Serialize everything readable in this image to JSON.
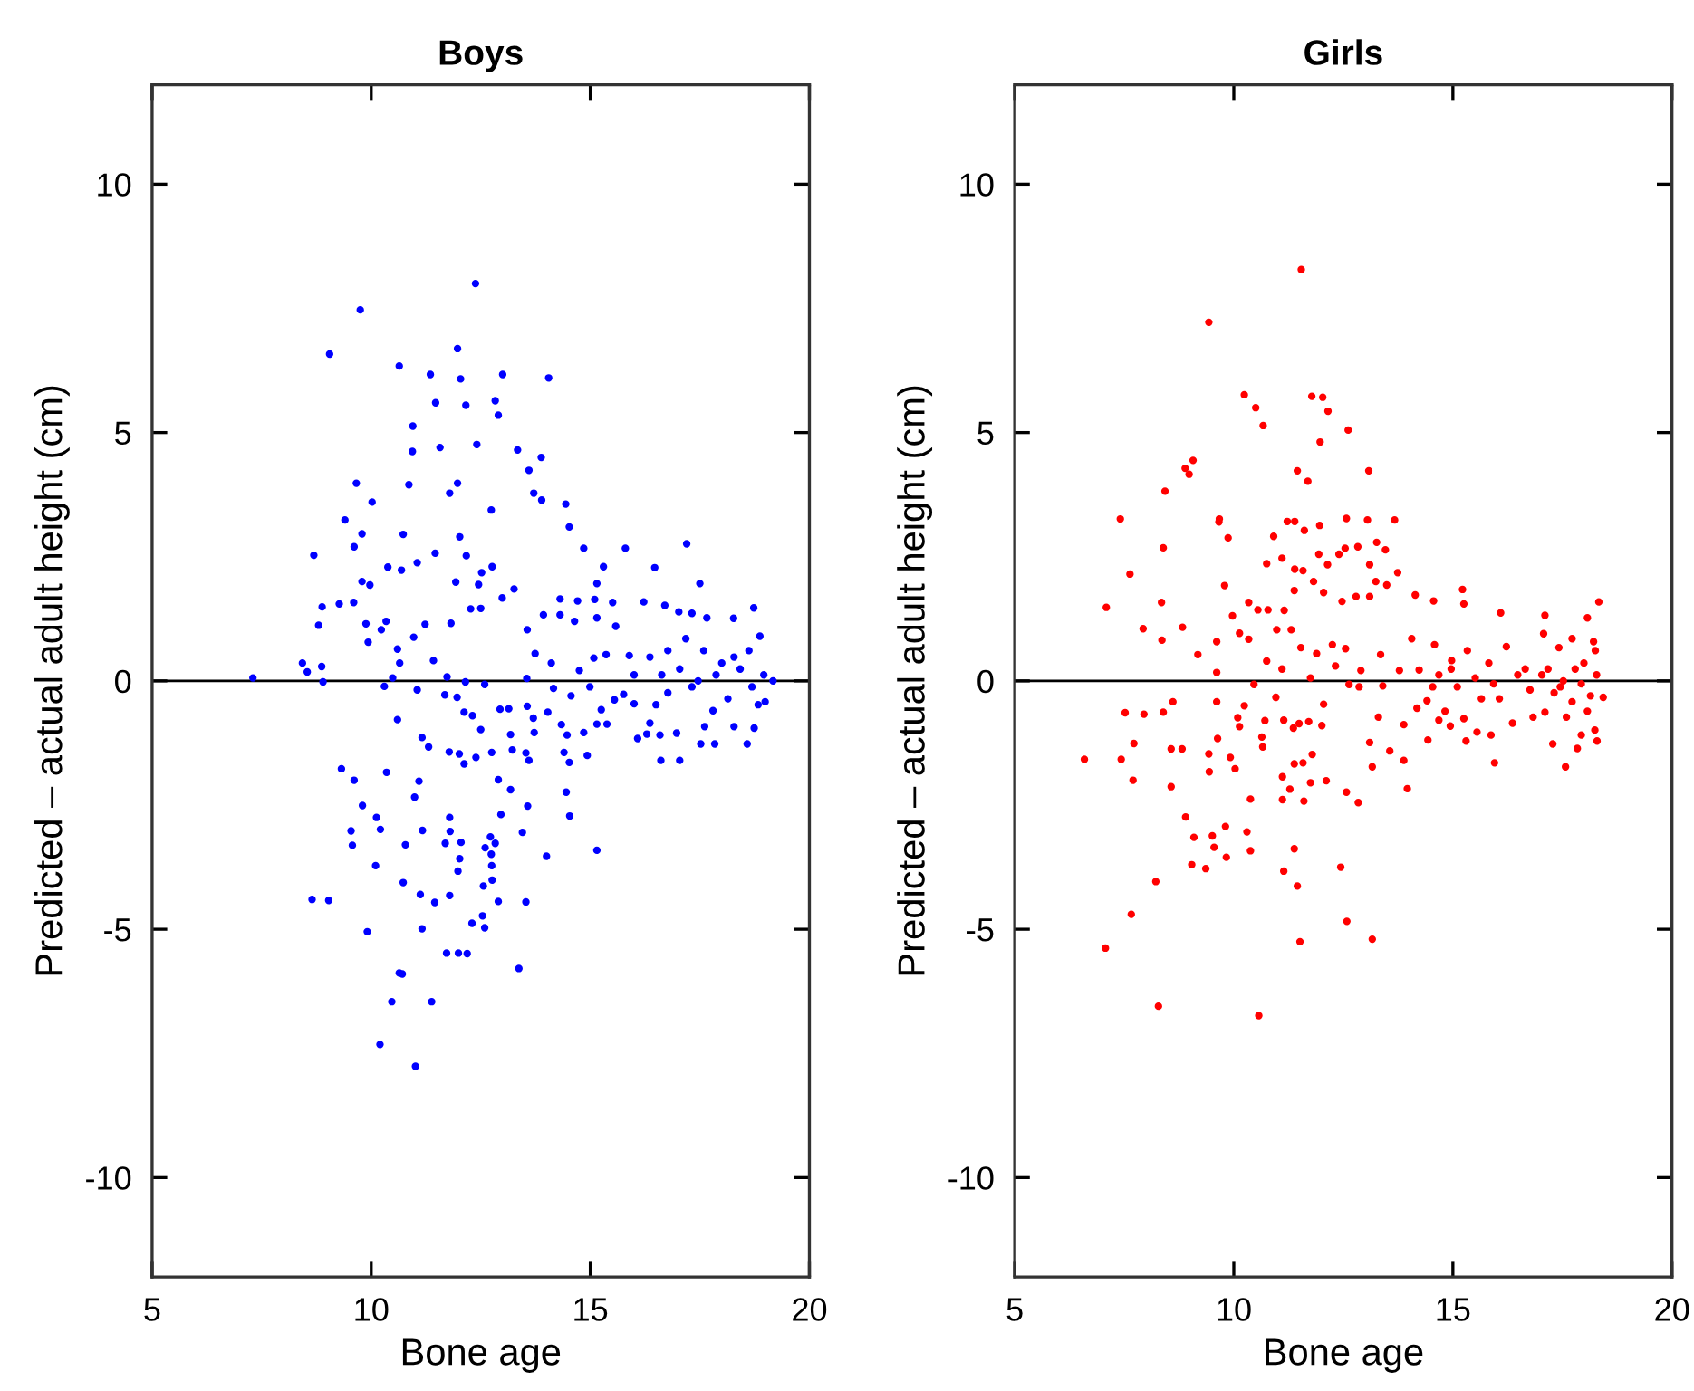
{
  "chart_data": [
    {
      "type": "scatter",
      "title": "Boys",
      "xlabel": "Bone age",
      "ylabel": "Predicted – actual adult height (cm)",
      "color": "#0000ff",
      "marker": "circle",
      "xlim": [
        5,
        20
      ],
      "ylim": [
        -12,
        12
      ],
      "xticks": [
        5,
        10,
        15,
        20
      ],
      "yticks": [
        -10,
        -5,
        0,
        5,
        10
      ],
      "ref_lines": [
        {
          "axis": "y",
          "value": 0,
          "label": null,
          "color": "#000000"
        }
      ],
      "x": [
        7.3,
        12.38,
        9.75,
        9.05,
        10.64,
        11.35,
        11.97,
        12.04,
        13.0,
        14.05,
        11.47,
        12.16,
        12.83,
        12.9,
        10.95,
        10.94,
        11.57,
        12.41,
        13.34,
        13.88,
        13.6,
        9.66,
        10.86,
        11.97,
        10.02,
        11.79,
        13.71,
        13.89,
        14.44,
        12.74,
        9.4,
        14.52,
        9.79,
        10.73,
        12.02,
        9.61,
        8.69,
        12.17,
        11.46,
        11.05,
        10.38,
        10.69,
        12.52,
        12.76,
        11.93,
        12.45,
        13.26,
        9.79,
        9.97,
        14.85,
        15.8,
        15.3,
        17.2,
        16.47,
        15.15,
        17.5,
        8.88,
        9.27,
        9.6,
        8.8,
        9.88,
        10.34,
        10.23,
        11.23,
        11.82,
        9.93,
        10.97,
        10.6,
        12.27,
        12.5,
        12.99,
        13.93,
        13.56,
        14.31,
        14.31,
        14.71,
        15.1,
        15.51,
        15.58,
        15.15,
        14.64,
        13.74,
        14.11,
        14.75,
        15.08,
        15.36,
        15.89,
        16.22,
        16.7,
        17.02,
        17.32,
        17.66,
        18.27,
        18.73,
        18.87,
        11.42,
        11.73,
        12.15,
        12.59,
        13.55,
        11.05,
        10.3,
        10.49,
        8.43,
        8.9,
        8.54,
        8.87,
        10.65,
        11.68,
        11.96,
        10.6,
        12.12,
        12.31,
        12.5,
        12.94,
        13.14,
        13.56,
        13.7,
        14.03,
        14.16,
        14.56,
        14.99,
        15.25,
        15.55,
        15.76,
        11.16,
        11.31,
        11.78,
        12.01,
        12.12,
        12.39,
        12.75,
        13.18,
        13.22,
        13.53,
        13.6,
        13.72,
        14.34,
        14.47,
        14.4,
        14.52,
        14.85,
        14.93,
        15.15,
        15.38,
        16.08,
        16.29,
        16.59,
        16.61,
        16.97,
        17.04,
        17.52,
        17.84,
        17.61,
        18.28,
        18.58,
        18.74,
        9.32,
        9.61,
        9.8,
        10.35,
        10.99,
        11.09,
        10.12,
        9.54,
        9.57,
        10.21,
        11.17,
        10.78,
        10.1,
        11.79,
        11.8,
        11.69,
        12.05,
        12.02,
        11.98,
        12.6,
        12.72,
        12.83,
        12.74,
        12.75,
        12.76,
        12.56,
        12.9,
        13.18,
        12.96,
        13.57,
        13.45,
        14.0,
        14.45,
        14.53,
        15.15,
        8.65,
        9.03,
        9.91,
        10.73,
        11.12,
        11.45,
        11.79,
        11.16,
        12.3,
        12.54,
        12.59,
        12.9,
        13.53,
        11.72,
        11.99,
        12.19,
        13.37,
        10.64,
        10.71,
        10.47,
        11.38,
        10.2,
        11.01,
        16.36,
        16.63,
        16.77,
        17.04,
        17.32,
        17.59,
        17.87,
        18.14,
        18.42,
        18.69,
        18.96,
        19.17,
        18.83,
        18.28,
        17.18,
        16.5,
        17.8,
        18.62,
        16.77,
        17.46,
        18.0,
        16.0,
        16.0,
        16.36,
        18.99
      ],
      "values": [
        0.06,
        8.0,
        7.47,
        6.58,
        6.34,
        6.17,
        6.69,
        6.08,
        6.17,
        6.1,
        5.6,
        5.55,
        5.64,
        5.35,
        5.13,
        4.62,
        4.7,
        4.76,
        4.65,
        4.5,
        4.24,
        3.98,
        3.95,
        3.98,
        3.6,
        3.78,
        3.78,
        3.64,
        3.56,
        3.44,
        3.24,
        3.1,
        2.96,
        2.95,
        2.9,
        2.7,
        2.53,
        2.52,
        2.57,
        2.38,
        2.29,
        2.23,
        2.18,
        2.3,
        1.99,
        1.94,
        1.85,
        2.0,
        1.93,
        2.67,
        2.67,
        2.3,
        2.76,
        2.28,
        1.96,
        1.96,
        1.49,
        1.55,
        1.58,
        1.12,
        1.15,
        1.2,
        1.03,
        1.14,
        1.16,
        0.78,
        0.88,
        0.64,
        1.45,
        1.46,
        1.67,
        1.33,
        1.03,
        1.33,
        1.65,
        1.61,
        1.64,
        1.58,
        1.1,
        1.27,
        1.2,
        0.55,
        0.36,
        0.21,
        0.46,
        0.53,
        0.51,
        1.59,
        1.52,
        1.39,
        1.36,
        1.27,
        1.26,
        1.47,
        0.9,
        0.41,
        0.08,
        -0.02,
        -0.07,
        0.05,
        -0.18,
        -0.11,
        0.06,
        0.36,
        -0.02,
        0.18,
        0.29,
        0.36,
        -0.28,
        -0.33,
        -0.78,
        -0.63,
        -0.7,
        -0.98,
        -0.57,
        -0.56,
        -0.51,
        -0.75,
        -0.63,
        -0.15,
        -0.3,
        -0.12,
        -0.58,
        -0.38,
        -0.27,
        -1.14,
        -1.33,
        -1.43,
        -1.47,
        -1.67,
        -1.54,
        -1.44,
        -1.08,
        -1.39,
        -1.45,
        -1.6,
        -1.04,
        -0.88,
        -1.09,
        -1.44,
        -1.64,
        -1.04,
        -1.5,
        -0.87,
        -0.87,
        -1.16,
        -1.07,
        -1.09,
        -1.6,
        -1.05,
        -1.6,
        -1.27,
        -1.27,
        -0.92,
        -0.92,
        -1.27,
        -0.95,
        -1.77,
        -2.0,
        -2.51,
        -1.84,
        -2.34,
        -2.02,
        -2.75,
        -3.02,
        -3.31,
        -2.99,
        -3.01,
        -3.3,
        -3.72,
        -2.75,
        -3.03,
        -3.27,
        -3.25,
        -3.58,
        -3.83,
        -3.36,
        -3.14,
        -3.27,
        -3.49,
        -3.72,
        -4.01,
        -4.13,
        -1.99,
        -2.19,
        -2.69,
        -2.52,
        -3.05,
        -3.53,
        -2.24,
        -2.72,
        -3.41,
        -4.4,
        -4.42,
        -5.05,
        -4.06,
        -4.3,
        -4.46,
        -4.32,
        -4.99,
        -4.88,
        -4.73,
        -4.97,
        -4.44,
        -4.45,
        -5.48,
        -5.48,
        -5.49,
        -5.79,
        -5.88,
        -5.9,
        -6.46,
        -6.46,
        -7.32,
        -7.76,
        0.48,
        0.12,
        -0.24,
        0.24,
        -0.12,
        0.61,
        0.12,
        -0.36,
        0.24,
        -0.12,
        0.12,
        0.0,
        -0.48,
        0.48,
        0.85,
        -0.48,
        -0.6,
        0.61,
        0.61,
        0.0,
        0.36,
        0.12,
        -0.46,
        -0.85,
        -0.42
      ]
    },
    {
      "type": "scatter",
      "title": "Girls",
      "xlabel": "Bone age",
      "ylabel": "Predicted – actual adult height (cm)",
      "color": "#ff0000",
      "marker": "circle",
      "xlim": [
        5,
        20
      ],
      "ylim": [
        -12,
        12
      ],
      "xticks": [
        5,
        10,
        15,
        20
      ],
      "yticks": [
        -10,
        -5,
        0,
        5,
        10
      ],
      "ref_lines": [
        {
          "axis": "y",
          "value": 0,
          "label": null,
          "color": "#000000"
        }
      ],
      "x": [
        11.54,
        9.43,
        10.24,
        10.5,
        10.67,
        11.78,
        12.03,
        12.15,
        12.61,
        11.97,
        9.07,
        8.89,
        8.98,
        11.45,
        11.69,
        13.08,
        8.43,
        7.41,
        9.67,
        9.66,
        11.22,
        11.39,
        11.61,
        11.96,
        12.57,
        13.05,
        13.67,
        8.39,
        9.87,
        10.91,
        11.1,
        10.75,
        11.39,
        11.58,
        11.94,
        12.14,
        12.4,
        12.54,
        12.83,
        13.1,
        13.26,
        13.46,
        7.63,
        7.09,
        8.35,
        7.93,
        8.36,
        8.83,
        9.79,
        9.97,
        10.34,
        10.55,
        10.78,
        10.13,
        10.34,
        10.98,
        11.15,
        11.31,
        11.38,
        11.82,
        12.05,
        12.47,
        12.79,
        13.1,
        13.24,
        13.49,
        13.74,
        14.14,
        15.22,
        14.56,
        15.25,
        16.09,
        17.1,
        18.33,
        18.07,
        9.18,
        9.61,
        9.61,
        10.46,
        10.75,
        11.1,
        11.53,
        11.75,
        11.89,
        12.25,
        12.32,
        12.55,
        12.63,
        12.9,
        13.35,
        13.4,
        13.78,
        14.06,
        14.23,
        14.58,
        14.97,
        15.33,
        15.82,
        16.22,
        16.65,
        17.07,
        17.42,
        17.72,
        17.99,
        18.25,
        7.52,
        7.95,
        8.39,
        8.61,
        9.61,
        10.24,
        10.09,
        10.13,
        10.96,
        10.71,
        10.64,
        10.66,
        11.14,
        11.36,
        11.49,
        11.71,
        12.01,
        12.05,
        12.86,
        13.3,
        13.1,
        13.16,
        13.56,
        13.88,
        13.88,
        14.18,
        14.41,
        14.43,
        14.68,
        14.94,
        15.25,
        15.3,
        15.55,
        15.95,
        15.87,
        16.36,
        16.83,
        17.1,
        17.28,
        17.57,
        17.84,
        17.93,
        18.24,
        18.29,
        18.43,
        6.59,
        7.43,
        7.72,
        7.7,
        8.57,
        8.82,
        8.57,
        9.43,
        9.44,
        9.63,
        9.92,
        10.03,
        10.38,
        11.11,
        11.11,
        11.28,
        11.38,
        11.58,
        11.6,
        11.75,
        11.79,
        12.11,
        12.57,
        12.84,
        13.96,
        8.9,
        9.09,
        9.51,
        9.55,
        9.81,
        9.83,
        10.3,
        10.38,
        9.04,
        9.36,
        11.38,
        11.14,
        11.45,
        12.44,
        8.22,
        7.66,
        7.07,
        11.51,
        12.58,
        13.16,
        8.28,
        10.57,
        14.68,
        15.1,
        15.51,
        15.93,
        16.06,
        16.48,
        16.76,
        17.03,
        17.31,
        17.52,
        17.72,
        17.93,
        18.14,
        18.28,
        17.59,
        18.07,
        14.82,
        15.65,
        14.54,
        14.96,
        17.17,
        17.79,
        18.21,
        17.45
      ],
      "values": [
        8.28,
        7.22,
        5.76,
        5.5,
        5.14,
        5.73,
        5.71,
        5.43,
        5.05,
        4.81,
        4.44,
        4.28,
        4.16,
        4.23,
        4.02,
        4.23,
        3.82,
        3.26,
        3.26,
        3.2,
        3.21,
        3.21,
        3.03,
        3.13,
        3.27,
        3.24,
        3.24,
        2.68,
        2.88,
        2.91,
        2.47,
        2.36,
        2.25,
        2.22,
        2.55,
        2.34,
        2.55,
        2.67,
        2.7,
        2.34,
        2.79,
        2.64,
        2.15,
        1.48,
        1.58,
        1.05,
        0.82,
        1.08,
        1.92,
        1.31,
        1.58,
        1.43,
        1.43,
        0.96,
        0.84,
        1.03,
        1.42,
        1.03,
        1.82,
        2.0,
        1.78,
        1.6,
        1.7,
        1.7,
        2.0,
        1.93,
        2.18,
        1.73,
        1.84,
        1.61,
        1.55,
        1.37,
        1.32,
        1.59,
        1.27,
        0.53,
        0.79,
        0.17,
        -0.07,
        0.4,
        0.24,
        0.67,
        0.06,
        0.55,
        0.73,
        0.3,
        0.65,
        -0.07,
        0.21,
        0.53,
        -0.1,
        0.21,
        0.85,
        0.22,
        0.73,
        0.41,
        0.61,
        0.36,
        0.69,
        0.24,
        0.95,
        0.67,
        0.85,
        0.36,
        0.61,
        -0.64,
        -0.67,
        -0.63,
        -0.42,
        -0.42,
        -0.5,
        -0.74,
        -0.92,
        -0.33,
        -0.8,
        -1.13,
        -1.33,
        -0.79,
        -0.95,
        -0.86,
        -0.82,
        -0.9,
        -0.47,
        -0.12,
        -0.73,
        -1.24,
        -1.73,
        -1.41,
        -1.6,
        -0.88,
        -0.55,
        -0.4,
        -1.19,
        -0.79,
        -0.91,
        -0.76,
        -1.21,
        -1.03,
        -1.65,
        -1.09,
        -0.85,
        -0.73,
        -0.63,
        -1.27,
        -1.73,
        -1.36,
        -1.09,
        -0.99,
        -1.21,
        -0.33,
        -1.58,
        -1.58,
        -1.26,
        -2.0,
        -1.37,
        -1.37,
        -2.13,
        -1.47,
        -1.83,
        -1.16,
        -1.54,
        -1.77,
        -2.38,
        -1.93,
        -2.39,
        -2.18,
        -1.67,
        -1.65,
        -2.42,
        -2.05,
        -1.48,
        -2.01,
        -2.24,
        -2.45,
        -2.17,
        -2.74,
        -3.15,
        -3.12,
        -3.35,
        -2.93,
        -3.55,
        -3.04,
        -3.42,
        -3.7,
        -3.78,
        -3.38,
        -3.83,
        -4.13,
        -3.75,
        -4.04,
        -4.7,
        -5.38,
        -5.25,
        -4.84,
        -5.2,
        -6.55,
        -6.74,
        0.12,
        -0.12,
        0.06,
        -0.06,
        -0.36,
        0.12,
        -0.18,
        0.12,
        -0.24,
        0.0,
        -0.42,
        -0.06,
        -0.3,
        0.12,
        -0.73,
        -0.61,
        -0.61,
        -0.36,
        -0.12,
        0.24,
        0.24,
        0.24,
        0.79,
        -0.12
      ]
    }
  ]
}
